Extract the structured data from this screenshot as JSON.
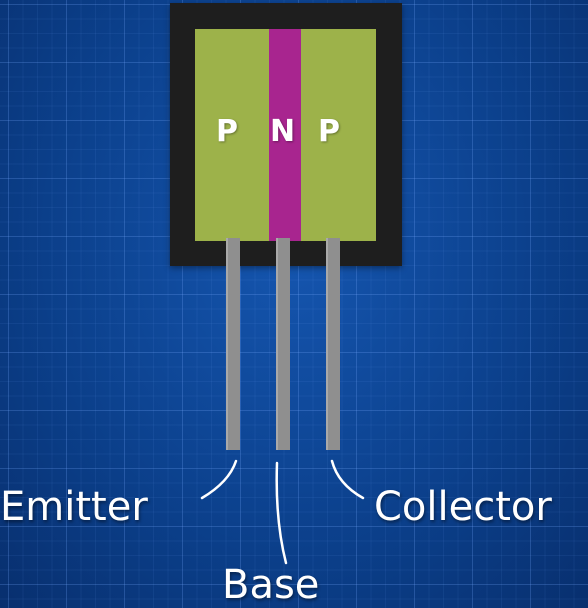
{
  "diagram": {
    "layers": [
      {
        "label": "P",
        "color": "#9db24a"
      },
      {
        "label": "N",
        "color": "#a8258f"
      },
      {
        "label": "P",
        "color": "#9db24a"
      }
    ],
    "terminals": {
      "emitter": "Emitter",
      "base": "Base",
      "collector": "Collector"
    },
    "colors": {
      "background": "#0a3f8c",
      "package": "#1e1e1e",
      "lead": "#8f8f8f",
      "text": "#ffffff"
    }
  }
}
